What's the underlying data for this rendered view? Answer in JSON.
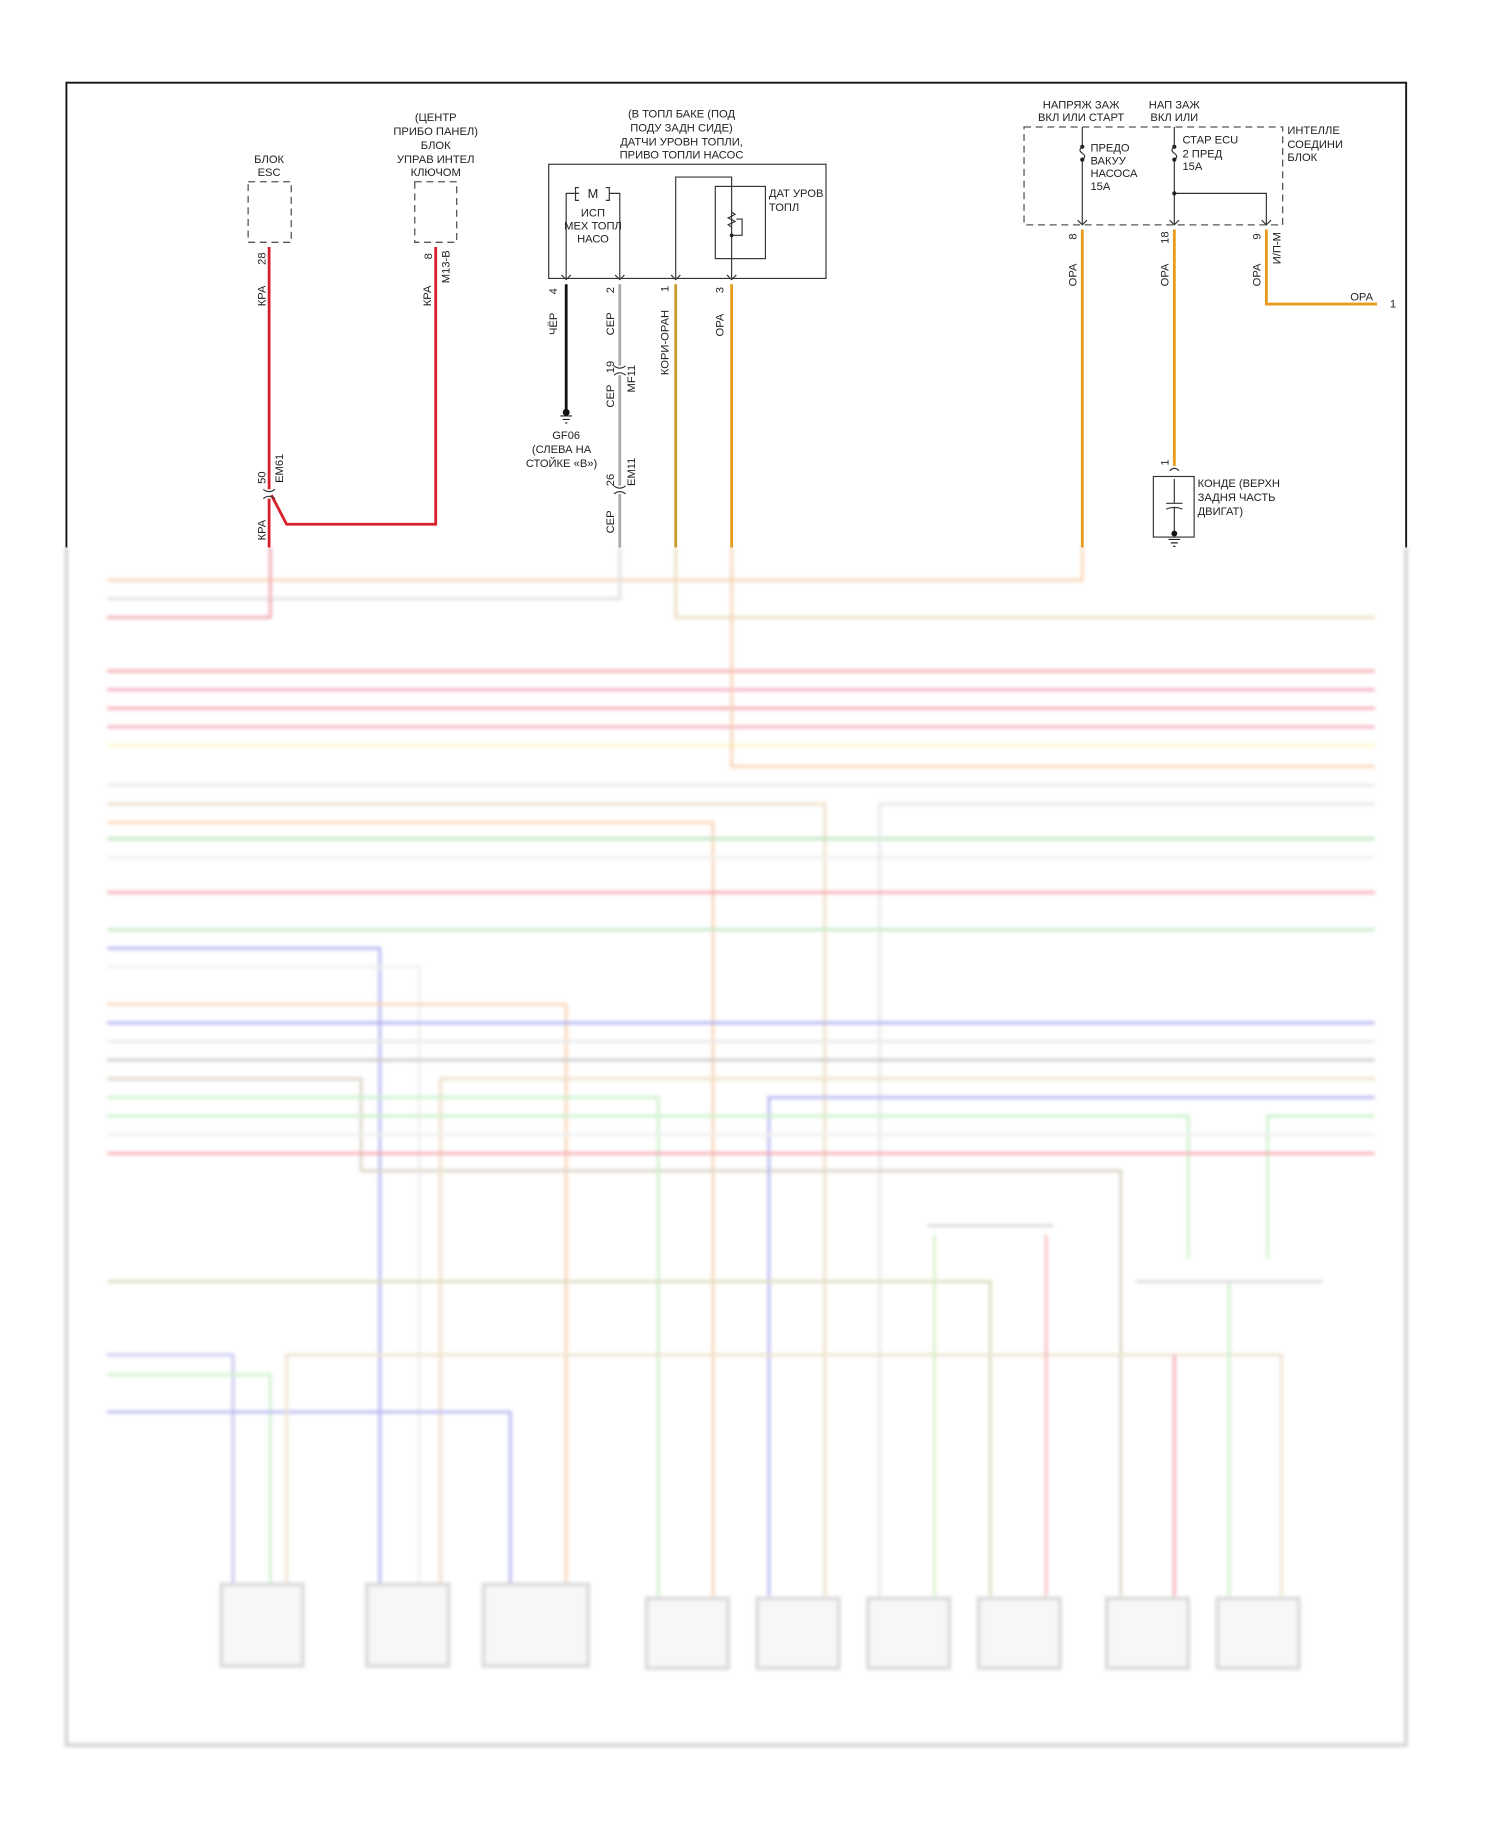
{
  "colors": {
    "red": "#d8202a",
    "orange": "#e79b1c",
    "korich_orange": "#c99a2a",
    "gray": "#a8a8a8",
    "black": "#111111"
  },
  "esc": {
    "lines": [
      "БЛОК",
      "ESC"
    ],
    "pin": "28",
    "wire": "КРА"
  },
  "smartkey": {
    "lines": [
      "(ЦЕНТР",
      "ПРИБО ПАНЕЛ)",
      "БЛОК",
      "УПРАВ ИНТЕЛ",
      "КЛЮЧОМ"
    ],
    "pin": "8",
    "connector": "M13-B",
    "wire": "КРА"
  },
  "em61": {
    "pin": "50",
    "connector": "EM61",
    "wire": "КРА"
  },
  "fuel_pump": {
    "title": [
      "(В ТОПЛ БАКЕ (ПОД",
      "ПОДУ ЗАДН СИДЕ)",
      "ДАТЧИ УРОВН ТОПЛИ,",
      "ПРИВО ТОПЛИ НАСОС"
    ],
    "motor_symbol": "M",
    "motor_label": [
      "ИСП",
      "МЕХ ТОПЛ",
      "НАСО"
    ],
    "sensor_label": [
      "ДАТ УРОВ",
      "ТОПЛ"
    ],
    "pins": [
      {
        "pin": "4",
        "wire": "ЧЁР"
      },
      {
        "pin": "2",
        "wire": "СЕР"
      },
      {
        "pin": "1",
        "wire": "КОРИ-ОРАН"
      },
      {
        "pin": "3",
        "wire": "ОРА"
      }
    ]
  },
  "mf11": {
    "pin": "19",
    "connector": "MF11",
    "wire": "СЕР"
  },
  "em11": {
    "pin": "26",
    "connector": "EM11",
    "wire": "СЕР"
  },
  "ground": {
    "lines": [
      "GF06",
      "(СЛЕВА НА",
      "СТОЙКЕ «В»)"
    ]
  },
  "junction_block": {
    "label": [
      "ИНТЕЛЛЕ",
      "СОЕДИНИ",
      "БЛОК"
    ],
    "supply1": [
      "НАПРЯЖ ЗАЖ",
      "ВКЛ ИЛИ СТАРТ"
    ],
    "supply2": [
      "НАП ЗАЖ",
      "ВКЛ ИЛИ"
    ],
    "fuse1": [
      "ПРЕДО",
      "ВАКУУ",
      "НАСОСА",
      "15A"
    ],
    "fuse2": [
      "СТАР ECU",
      "2 ПРЕД",
      "15A"
    ],
    "pins": [
      {
        "pin": "8",
        "wire": "ОРА"
      },
      {
        "pin": "18",
        "wire": "ОРА"
      },
      {
        "pin": "9",
        "wire": "ОРА",
        "connector": "И/П-М"
      }
    ]
  },
  "offpage": {
    "wire": "ОРА",
    "ref": "1"
  },
  "capacitor": {
    "pin": "1",
    "lines": [
      "КОНДЕ (ВЕРХН",
      "ЗАДНЯ ЧАСТЬ",
      "ДВИГАТ)"
    ]
  }
}
